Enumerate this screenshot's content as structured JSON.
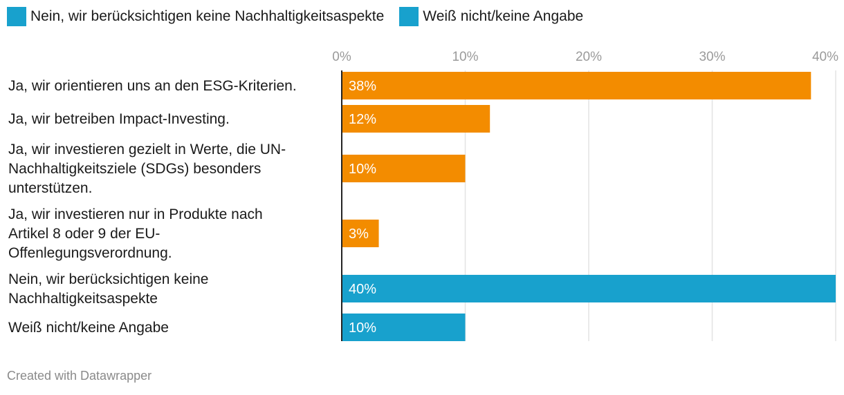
{
  "colors": {
    "yes": "#f38c00",
    "no": "#18a1cd",
    "grid": "#e3e3e3",
    "axis": "#222222"
  },
  "legend": [
    {
      "label": "Nein, wir berücksichtigen keine Nachhaltigkeitsaspekte",
      "color": "#18a1cd"
    },
    {
      "label": "Weiß nicht/keine Angabe",
      "color": "#18a1cd"
    }
  ],
  "chart_data": {
    "type": "bar",
    "orientation": "horizontal",
    "title": "",
    "xlabel": "",
    "ylabel": "",
    "xlim": [
      0,
      40
    ],
    "ticks": [
      {
        "value": 0,
        "label": "0%"
      },
      {
        "value": 10,
        "label": "10%"
      },
      {
        "value": 20,
        "label": "20%"
      },
      {
        "value": 30,
        "label": "30%"
      },
      {
        "value": 40,
        "label": "40%"
      }
    ],
    "bars": [
      {
        "category_lines": [
          "Ja, wir orientieren uns an den ESG-Kriterien."
        ],
        "value": 38,
        "label": "38%",
        "color": "#f38c00"
      },
      {
        "category_lines": [
          "Ja, wir betreiben Impact-Investing."
        ],
        "value": 12,
        "label": "12%",
        "color": "#f38c00"
      },
      {
        "category_lines": [
          "Ja, wir investieren gezielt in Werte, die UN-",
          "Nachhaltigkeitsziele (SDGs) besonders",
          "unterstützen."
        ],
        "value": 10,
        "label": "10%",
        "color": "#f38c00"
      },
      {
        "category_lines": [
          "Ja, wir investieren nur in Produkte nach",
          "Artikel 8 oder 9 der EU-",
          "Offenlegungsverordnung."
        ],
        "value": 3,
        "label": "3%",
        "color": "#f38c00"
      },
      {
        "category_lines": [
          "Nein, wir berücksichtigen keine",
          "Nachhaltigkeitsaspekte"
        ],
        "value": 40,
        "label": "40%",
        "color": "#18a1cd"
      },
      {
        "category_lines": [
          "Weiß nicht/keine Angabe"
        ],
        "value": 10,
        "label": "10%",
        "color": "#18a1cd"
      }
    ]
  },
  "footer": {
    "credit": "Created with Datawrapper"
  }
}
